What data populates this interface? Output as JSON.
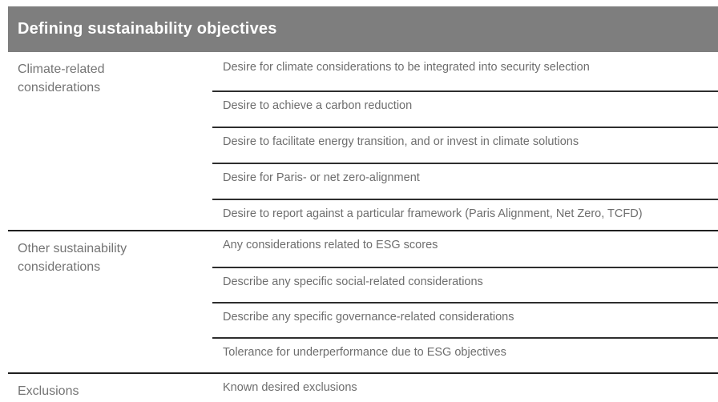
{
  "header": {
    "title": "Defining sustainability objectives"
  },
  "colors": {
    "header_bg": "#7e7e7e",
    "header_text": "#ffffff",
    "body_text": "#6e6e6e",
    "section_divider": "#1f1f1f",
    "item_separator": "#2e2e2e"
  },
  "sections": [
    {
      "label": "Climate-related considerations",
      "items": [
        "Desire for climate considerations to be integrated into security selection",
        "Desire to achieve a carbon reduction",
        "Desire to facilitate energy transition, and or invest in climate solutions",
        "Desire for Paris- or net zero-alignment",
        "Desire to report against a particular framework (Paris Alignment, Net Zero, TCFD)"
      ]
    },
    {
      "label": "Other sustainability considerations",
      "items": [
        "Any considerations related to ESG scores",
        "Describe any specific social-related considerations",
        "Describe any specific governance-related considerations",
        "Tolerance for underperformance due to ESG objectives"
      ]
    },
    {
      "label": "Exclusions",
      "items": [
        "Known desired exclusions"
      ]
    }
  ]
}
